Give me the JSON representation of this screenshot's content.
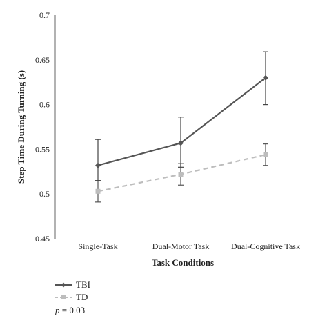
{
  "chart_data": {
    "type": "line",
    "categories": [
      "Single-Task",
      "Dual-Motor Task",
      "Dual-Cognitive Task"
    ],
    "xlabel": "Task Conditions",
    "ylabel": "Step Time During Turning (s)",
    "ylim": [
      0.45,
      0.7
    ],
    "yticks": [
      0.45,
      0.5,
      0.55,
      0.6,
      0.65,
      0.7
    ],
    "ytick_labels": [
      "0.45",
      "0.5",
      "0.55",
      "0.6",
      "0.65",
      "0.7"
    ],
    "grid": false,
    "legend_position": "bottom-left",
    "series": [
      {
        "name": "TBI",
        "values": [
          0.532,
          0.557,
          0.63
        ],
        "error_low": [
          0.515,
          0.53,
          0.6
        ],
        "error_high": [
          0.561,
          0.586,
          0.659
        ],
        "color": "#555555",
        "line_style": "solid",
        "marker": "diamond"
      },
      {
        "name": "TD",
        "values": [
          0.503,
          0.522,
          0.544
        ],
        "error_low": [
          0.491,
          0.51,
          0.532
        ],
        "error_high": [
          0.515,
          0.534,
          0.556
        ],
        "color": "#bdbdbd",
        "line_style": "dashed",
        "marker": "square"
      }
    ],
    "annotation": {
      "italic_part": "p",
      "text": " = 0.03"
    }
  }
}
